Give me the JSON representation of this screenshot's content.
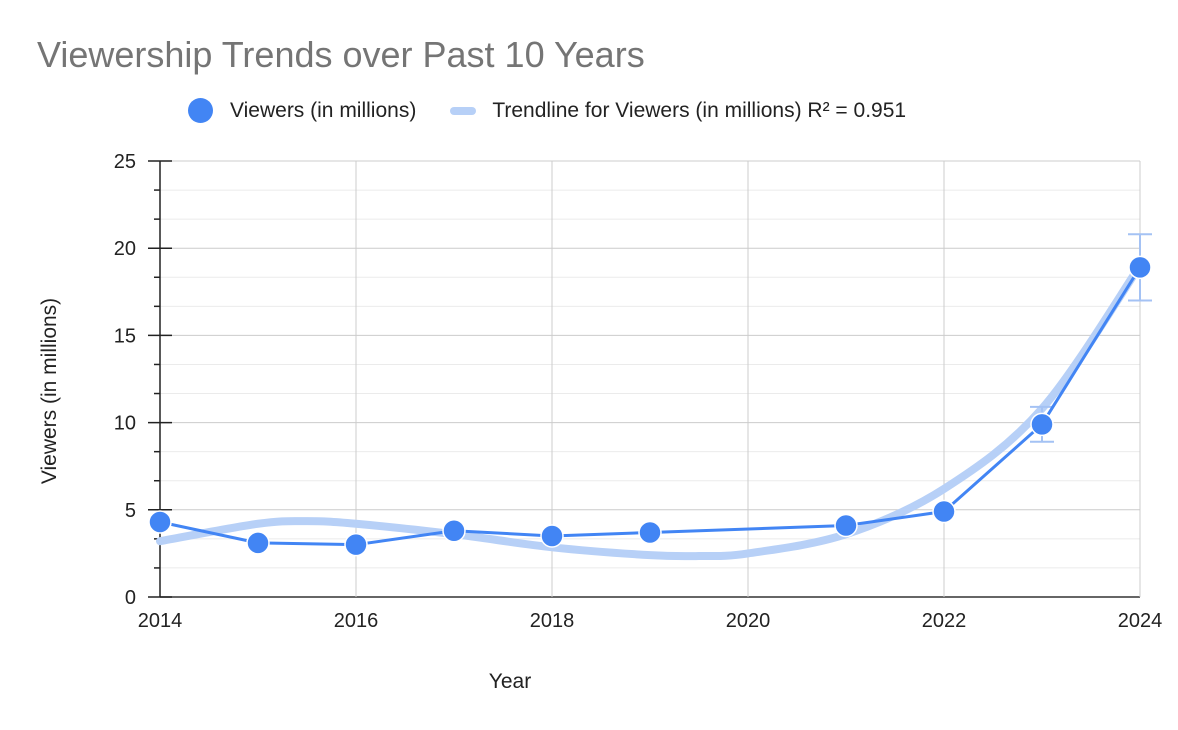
{
  "chart_data": {
    "type": "line",
    "title": "Viewership Trends over Past 10 Years",
    "xlabel": "Year",
    "ylabel": "Viewers (in millions)",
    "xlim": [
      2014,
      2024
    ],
    "ylim": [
      0,
      25
    ],
    "x_ticks": [
      "2014",
      "2016",
      "2018",
      "2020",
      "2022",
      "2024"
    ],
    "y_ticks": [
      "0",
      "5",
      "10",
      "15",
      "20",
      "25"
    ],
    "grid": true,
    "legend_position": "top",
    "series": [
      {
        "name": "Viewers (in millions)",
        "color": "#4285f4",
        "points": [
          {
            "x": 2014,
            "y": 4.3
          },
          {
            "x": 2015,
            "y": 3.1
          },
          {
            "x": 2016,
            "y": 3.0
          },
          {
            "x": 2017,
            "y": 3.8
          },
          {
            "x": 2018,
            "y": 3.5
          },
          {
            "x": 2019,
            "y": 3.7
          },
          {
            "x": 2021,
            "y": 4.1
          },
          {
            "x": 2022,
            "y": 4.9
          },
          {
            "x": 2023,
            "y": 9.9
          },
          {
            "x": 2024,
            "y": 18.9
          }
        ],
        "error_bars": [
          {
            "x": 2023,
            "low": 8.9,
            "high": 10.9
          },
          {
            "x": 2024,
            "low": 17.0,
            "high": 20.8
          }
        ]
      }
    ],
    "trendline": {
      "name": "Trendline for Viewers (in millions) R² = 0.951",
      "color": "#b7d0f7",
      "points": [
        {
          "x": 2014,
          "y": 3.2
        },
        {
          "x": 2015,
          "y": 4.2
        },
        {
          "x": 2015.5,
          "y": 4.35
        },
        {
          "x": 2016,
          "y": 4.2
        },
        {
          "x": 2017,
          "y": 3.6
        },
        {
          "x": 2018,
          "y": 2.85
        },
        {
          "x": 2019,
          "y": 2.4
        },
        {
          "x": 2019.5,
          "y": 2.35
        },
        {
          "x": 2020,
          "y": 2.5
        },
        {
          "x": 2021,
          "y": 3.6
        },
        {
          "x": 2022,
          "y": 6.2
        },
        {
          "x": 2023,
          "y": 10.8
        },
        {
          "x": 2024,
          "y": 19.0
        }
      ]
    }
  }
}
